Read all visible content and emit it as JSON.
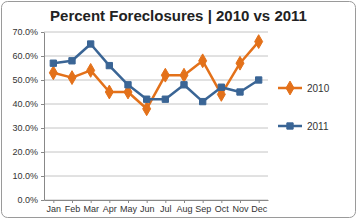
{
  "chart_data": {
    "type": "line",
    "title": "Percent Foreclosures | 2010 vs 2011",
    "categories": [
      "Jan",
      "Feb",
      "Mar",
      "Apr",
      "May",
      "Jun",
      "Jul",
      "Aug",
      "Sep",
      "Oct",
      "Nov",
      "Dec"
    ],
    "series": [
      {
        "name": "2010",
        "color": "#e3711a",
        "marker": "diamond",
        "values": [
          53,
          51,
          54,
          45,
          45,
          38,
          52,
          52,
          58,
          44,
          57,
          66
        ]
      },
      {
        "name": "2011",
        "color": "#3a6595",
        "marker": "square",
        "values": [
          57,
          58,
          65,
          56,
          48,
          42,
          42,
          48,
          41,
          47,
          45,
          50
        ]
      }
    ],
    "ylim": [
      0,
      70
    ],
    "yticks": [
      {
        "value": 0,
        "label": "0.0%"
      },
      {
        "value": 10,
        "label": "10.0%"
      },
      {
        "value": 20,
        "label": "20.0%"
      },
      {
        "value": 30,
        "label": "30.0%"
      },
      {
        "value": 40,
        "label": "40.0%"
      },
      {
        "value": 50,
        "label": "50.0%"
      },
      {
        "value": 60,
        "label": "60.0%"
      },
      {
        "value": 70,
        "label": "70.0%"
      }
    ],
    "grid": true,
    "legend": "right"
  }
}
